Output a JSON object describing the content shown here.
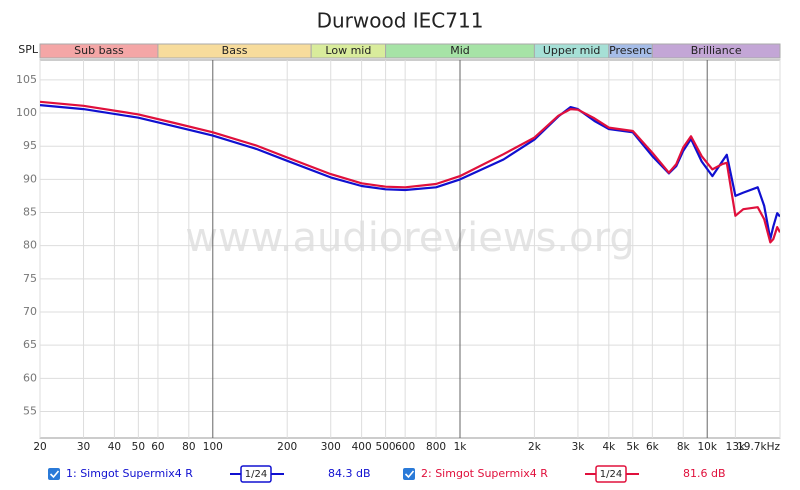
{
  "chart_data": {
    "type": "line",
    "title": "Durwood IEC711",
    "y_label": "SPL",
    "watermark": "www.audioreviews.org",
    "log_x": true,
    "grid": true,
    "xlim": [
      20,
      19700
    ],
    "ylim": [
      51,
      108
    ],
    "xticks": [
      20,
      30,
      40,
      50,
      60,
      80,
      100,
      200,
      300,
      400,
      500,
      600,
      800,
      {
        "value": 1000,
        "label": "1k"
      },
      {
        "value": 2000,
        "label": "2k"
      },
      {
        "value": 3000,
        "label": "3k"
      },
      {
        "value": 4000,
        "label": "4k"
      },
      {
        "value": 5000,
        "label": "5k"
      },
      {
        "value": 6000,
        "label": "6k"
      },
      {
        "value": 8000,
        "label": "8k"
      },
      {
        "value": 10000,
        "label": "10k"
      },
      {
        "value": 13000,
        "label": "13k"
      },
      {
        "value": 19700,
        "label": "19.7kHz"
      }
    ],
    "yticks": [
      55,
      60,
      65,
      70,
      75,
      80,
      85,
      90,
      95,
      100,
      105
    ],
    "bands": [
      {
        "label": "Sub bass",
        "from": 20,
        "to": 60,
        "color": "#f4a6a6"
      },
      {
        "label": "Bass",
        "from": 60,
        "to": 250,
        "color": "#f7dc9c"
      },
      {
        "label": "Low mid",
        "from": 250,
        "to": 500,
        "color": "#d9ec9c"
      },
      {
        "label": "Mid",
        "from": 500,
        "to": 2000,
        "color": "#a6e3a6"
      },
      {
        "label": "Upper mid",
        "from": 2000,
        "to": 4000,
        "color": "#a6e0d6"
      },
      {
        "label": "Presenc",
        "from": 4000,
        "to": 6000,
        "color": "#a6bde8"
      },
      {
        "label": "Brilliance",
        "from": 6000,
        "to": 19700,
        "color": "#c3a6d6"
      }
    ],
    "x": [
      20,
      30,
      50,
      70,
      100,
      150,
      200,
      300,
      400,
      500,
      600,
      800,
      1000,
      1500,
      2000,
      2500,
      2800,
      3000,
      3500,
      4000,
      5000,
      6000,
      7000,
      7500,
      8000,
      8600,
      9500,
      10500,
      11500,
      12000,
      13000,
      14000,
      16000,
      17000,
      18000,
      18500,
      19200,
      19700
    ],
    "series": [
      {
        "name": "1: Simgot Supermix4 R",
        "color": "#1010d0",
        "smoothing": "1/24",
        "level": "84.3 dB",
        "values": [
          101.2,
          100.6,
          99.3,
          98.0,
          96.6,
          94.6,
          92.8,
          90.3,
          89.0,
          88.5,
          88.4,
          88.8,
          90.0,
          93.0,
          96.0,
          99.5,
          100.9,
          100.6,
          98.8,
          97.6,
          97.1,
          93.5,
          90.9,
          92.0,
          94.3,
          96.1,
          92.7,
          90.5,
          92.7,
          93.7,
          87.5,
          88.0,
          88.8,
          86.0,
          81.0,
          82.9,
          84.9,
          84.4
        ]
      },
      {
        "name": "2: Simgot Supermix4 R",
        "color": "#e0103c",
        "smoothing": "1/24",
        "level": "81.6 dB",
        "values": [
          101.7,
          101.1,
          99.8,
          98.5,
          97.1,
          95.1,
          93.3,
          90.8,
          89.4,
          88.9,
          88.8,
          89.3,
          90.5,
          93.8,
          96.3,
          99.6,
          100.6,
          100.5,
          99.2,
          97.8,
          97.3,
          94.0,
          91.0,
          92.3,
          94.8,
          96.5,
          93.5,
          91.5,
          92.3,
          92.5,
          84.5,
          85.5,
          85.8,
          84.0,
          80.5,
          81.0,
          82.8,
          82.0
        ]
      }
    ]
  }
}
